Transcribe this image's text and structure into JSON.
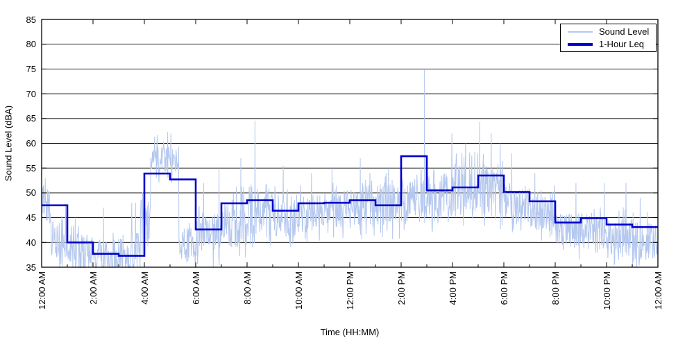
{
  "chart_data": {
    "type": "line",
    "title": "",
    "xlabel": "Time (HH:MM)",
    "ylabel": "Sound Level (dBA)",
    "ylim": [
      35,
      85
    ],
    "ytick_step": 5,
    "ytick_labels": [
      "35",
      "40",
      "45",
      "50",
      "55",
      "60",
      "65",
      "70",
      "75",
      "80",
      "85"
    ],
    "xtick_labels": [
      "12:00 AM",
      "2:00 AM",
      "4:00 AM",
      "6:00 AM",
      "8:00 AM",
      "10:00 AM",
      "12:00 PM",
      "2:00 PM",
      "4:00 PM",
      "6:00 PM",
      "8:00 PM",
      "10:00 PM",
      "12:00 AM"
    ],
    "xtick_hours": [
      0,
      2,
      4,
      6,
      8,
      10,
      12,
      14,
      16,
      18,
      20,
      22,
      24
    ],
    "x_total_hours": 24,
    "grid": "horizontal-only",
    "legend_position": "top-right",
    "colors": {
      "background": "#ffffff",
      "grid": "#000000",
      "frame": "#000000"
    },
    "series": [
      {
        "name": "Sound Level",
        "color": "#b4c7ee",
        "width": 1,
        "kind": "minute-noise",
        "envelope_hours_lo_hi": [
          [
            0.0,
            0.35,
            43,
            52
          ],
          [
            0.35,
            1.0,
            37,
            46
          ],
          [
            1.0,
            2.0,
            34,
            42
          ],
          [
            2.0,
            3.0,
            33.5,
            41
          ],
          [
            3.0,
            3.85,
            33.5,
            42
          ],
          [
            3.85,
            4.25,
            40,
            50
          ],
          [
            4.25,
            5.35,
            54,
            59.5
          ],
          [
            5.35,
            6.0,
            36,
            43
          ],
          [
            6.0,
            7.0,
            37,
            46
          ],
          [
            7.0,
            8.0,
            39,
            49
          ],
          [
            8.0,
            9.0,
            41,
            51
          ],
          [
            9.0,
            10.0,
            41,
            49
          ],
          [
            10.0,
            11.0,
            42,
            50
          ],
          [
            11.0,
            12.0,
            43,
            51
          ],
          [
            12.0,
            13.0,
            43,
            52
          ],
          [
            13.0,
            14.0,
            43,
            52
          ],
          [
            14.0,
            15.0,
            44,
            53
          ],
          [
            15.0,
            16.0,
            44,
            54
          ],
          [
            16.0,
            17.0,
            45,
            56
          ],
          [
            17.0,
            18.0,
            45,
            56
          ],
          [
            18.0,
            19.0,
            44,
            52
          ],
          [
            19.0,
            20.0,
            42,
            50
          ],
          [
            20.0,
            21.0,
            38.5,
            46
          ],
          [
            21.0,
            22.0,
            38.5,
            46
          ],
          [
            22.0,
            23.0,
            37,
            45
          ],
          [
            23.0,
            24.0,
            36,
            44
          ]
        ],
        "spikes_hour_peak": [
          [
            0.13,
            53
          ],
          [
            1.3,
            45
          ],
          [
            2.4,
            47
          ],
          [
            3.5,
            48
          ],
          [
            3.65,
            48
          ],
          [
            4.9,
            62.3
          ],
          [
            6.3,
            52
          ],
          [
            6.9,
            55
          ],
          [
            7.75,
            57
          ],
          [
            8.3,
            64.6
          ],
          [
            9.4,
            55.5
          ],
          [
            10.5,
            54
          ],
          [
            11.3,
            55
          ],
          [
            12.4,
            57
          ],
          [
            13.5,
            55
          ],
          [
            14.9,
            74.8
          ],
          [
            15.96,
            62
          ],
          [
            16.5,
            60
          ],
          [
            17.05,
            64.3
          ],
          [
            17.5,
            62
          ],
          [
            17.85,
            60
          ],
          [
            18.3,
            58
          ],
          [
            19.2,
            54
          ],
          [
            20.8,
            52
          ],
          [
            21.9,
            52
          ],
          [
            22.75,
            52
          ],
          [
            23.3,
            49
          ]
        ]
      },
      {
        "name": "1-Hour Leq",
        "color": "#0000cc",
        "width": 2.6,
        "kind": "hourly-step",
        "hourly_values": [
          47.5,
          40.0,
          37.7,
          37.3,
          53.9,
          52.7,
          42.6,
          47.9,
          48.5,
          46.4,
          47.9,
          48.0,
          48.5,
          47.5,
          57.4,
          50.5,
          51.1,
          53.5,
          50.2,
          48.3,
          44.0,
          44.9,
          43.6,
          43.1
        ]
      }
    ]
  }
}
